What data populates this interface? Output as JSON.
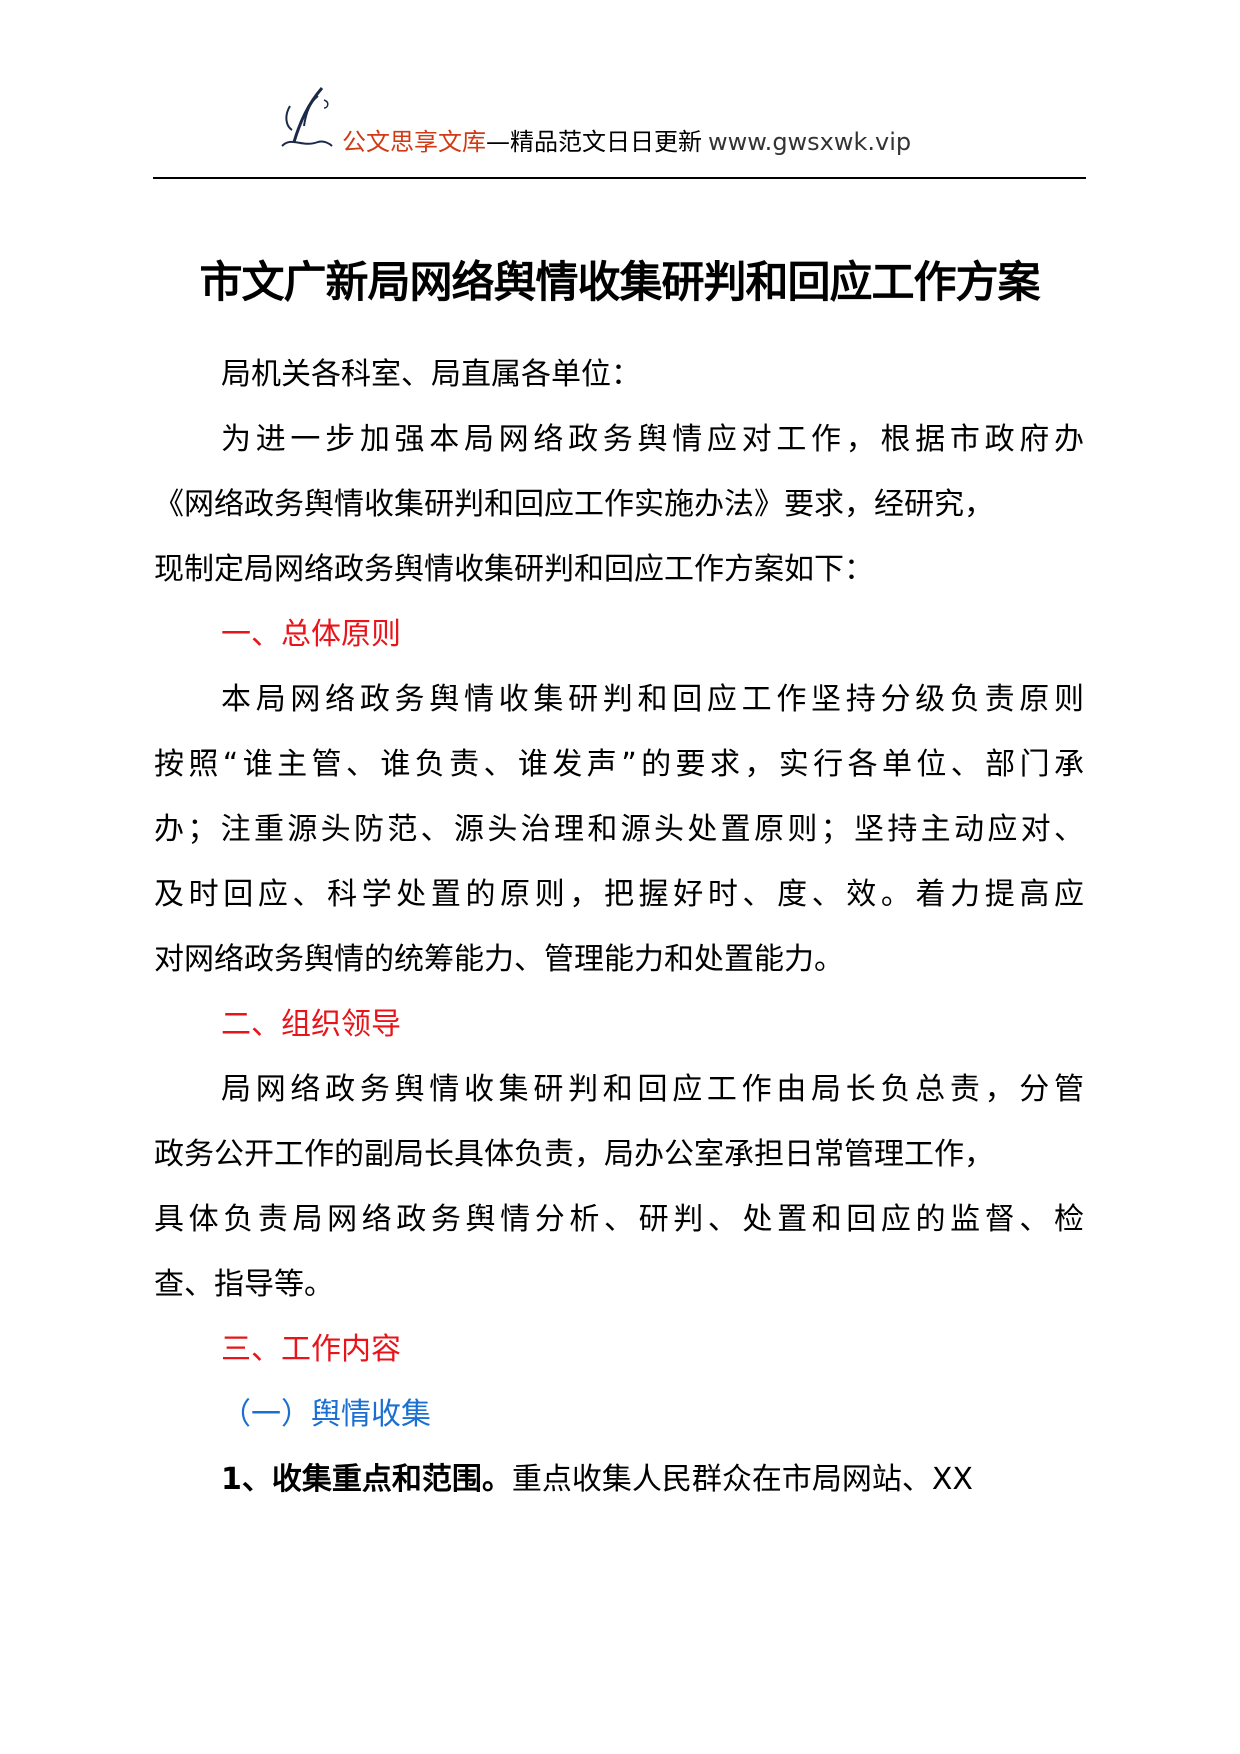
{
  "header": {
    "brand": "公文思享文库",
    "slogan": "—精品范文日日更新",
    "url": "www.gwsxwk.vip",
    "brand_color": "#d03a14"
  },
  "title": "市文广新局网络舆情收集研判和回应工作方案",
  "salutation": "局机关各科室、局直属各单位：",
  "intro": [
    "为进一步加强本局网络政务舆情应对工作，根据市政府办",
    "《网络政务舆情收集研判和回应工作实施办法》要求，经研究，",
    "现制定局网络政务舆情收集研判和回应工作方案如下："
  ],
  "section1": {
    "heading": "一、总体原则",
    "lines": [
      "本局网络政务舆情收集研判和回应工作坚持分级负责原则",
      "按照“谁主管、谁负责、谁发声”的要求，实行各单位、部门承",
      "办；注重源头防范、源头治理和源头处置原则；坚持主动应对、",
      "及时回应、科学处置的原则，把握好时、度、效。着力提高应",
      "对网络政务舆情的统筹能力、管理能力和处置能力。"
    ]
  },
  "section2": {
    "heading": "二、组织领导",
    "lines": [
      "局网络政务舆情收集研判和回应工作由局长负总责，分管",
      "政务公开工作的副局长具体负责，局办公室承担日常管理工作，",
      "具体负责局网络政务舆情分析、研判、处置和回应的监督、检",
      "查、指导等。"
    ]
  },
  "section3": {
    "heading": "三、工作内容",
    "subheading": "（一）舆情收集",
    "item1_bold": "1、收集重点和范围。",
    "item1_text": "重点收集人民群众在市局网站、XX"
  },
  "colors": {
    "heading": "#e8141a",
    "subheading": "#1a6fd0"
  }
}
